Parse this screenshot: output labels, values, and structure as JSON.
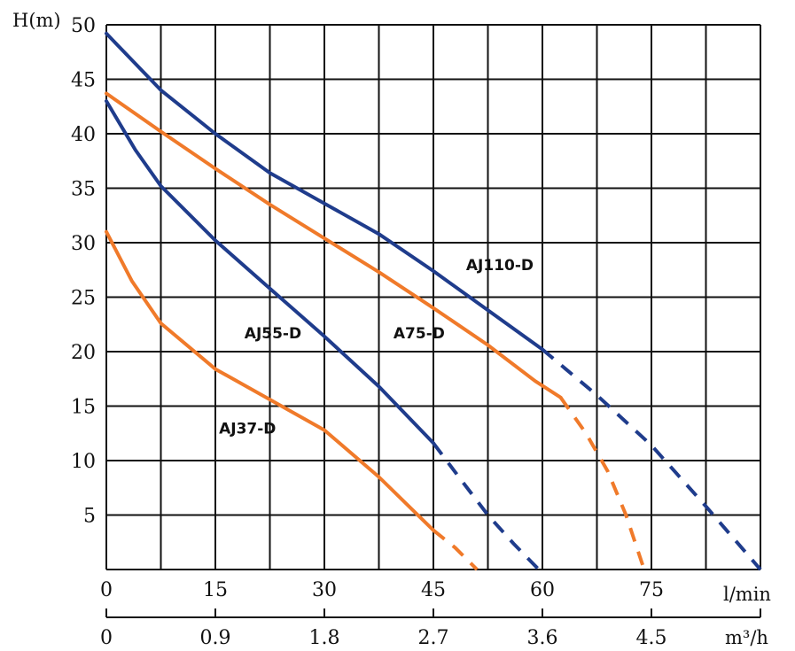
{
  "chart_data": {
    "type": "line",
    "title": "",
    "ylabel": "H(m)",
    "xlabel": "l/min",
    "xlabel2": "m³/h",
    "xlim": [
      0,
      90
    ],
    "ylim": [
      0,
      50
    ],
    "x_ticks": [
      "0",
      "15",
      "30",
      "45",
      "60",
      "75"
    ],
    "x_ticks_values": [
      0,
      15,
      30,
      45,
      60,
      75
    ],
    "x2_ticks": [
      "0",
      "0.9",
      "1.8",
      "2.7",
      "3.6",
      "4.5"
    ],
    "y_ticks": [
      "50",
      "45",
      "40",
      "35",
      "30",
      "25",
      "20",
      "15",
      "10",
      "5"
    ],
    "y_ticks_values": [
      50,
      45,
      40,
      35,
      30,
      25,
      20,
      15,
      10,
      5
    ],
    "grid": true,
    "colors": {
      "blue": "#1f3c8c",
      "orange": "#f07a2a",
      "grid": "#111111"
    },
    "series": [
      {
        "name": "AJ110-D",
        "color": "#1f3c8c",
        "solid": [
          [
            0,
            49.2
          ],
          [
            7.5,
            44
          ],
          [
            15,
            40
          ],
          [
            22.5,
            36.4
          ],
          [
            30,
            33.6
          ],
          [
            37.5,
            30.8
          ],
          [
            45,
            27.4
          ],
          [
            52.5,
            23.8
          ],
          [
            60,
            20.2
          ]
        ],
        "dashed": [
          [
            60,
            20.2
          ],
          [
            67.5,
            16
          ],
          [
            75,
            11.4
          ],
          [
            82.5,
            5.8
          ],
          [
            90,
            0
          ]
        ],
        "label_at": [
          49.5,
          27.5
        ]
      },
      {
        "name": "A75-D",
        "color": "#f07a2a",
        "solid": [
          [
            0,
            43.7
          ],
          [
            7.5,
            40.2
          ],
          [
            15,
            36.8
          ],
          [
            22.5,
            33.5
          ],
          [
            30,
            30.4
          ],
          [
            37.5,
            27.3
          ],
          [
            45,
            24
          ],
          [
            52.5,
            20.6
          ],
          [
            59,
            17.3
          ],
          [
            62.5,
            15.8
          ]
        ],
        "dashed": [
          [
            62.5,
            15.8
          ],
          [
            66,
            12.5
          ],
          [
            69,
            9
          ],
          [
            71.5,
            5
          ],
          [
            74,
            0
          ]
        ],
        "label_at": [
          39.5,
          21.2
        ]
      },
      {
        "name": "AJ55-D",
        "color": "#1f3c8c",
        "solid": [
          [
            0,
            43
          ],
          [
            4,
            38.5
          ],
          [
            7.5,
            35.2
          ],
          [
            15,
            30.2
          ],
          [
            22.5,
            25.8
          ],
          [
            30,
            21.4
          ],
          [
            37.5,
            16.8
          ],
          [
            45,
            11.6
          ]
        ],
        "dashed": [
          [
            45,
            11.6
          ],
          [
            48.5,
            8.5
          ],
          [
            52.5,
            5
          ],
          [
            56,
            2.4
          ],
          [
            59.5,
            0
          ]
        ],
        "label_at": [
          19,
          21.2
        ]
      },
      {
        "name": "AJ37-D",
        "color": "#f07a2a",
        "solid": [
          [
            0,
            31
          ],
          [
            3.5,
            26.5
          ],
          [
            7.5,
            22.6
          ],
          [
            15,
            18.4
          ],
          [
            22.5,
            15.6
          ],
          [
            30,
            12.8
          ],
          [
            37.5,
            8.5
          ],
          [
            45,
            3.6
          ]
        ],
        "dashed": [
          [
            45,
            3.6
          ],
          [
            48,
            2
          ],
          [
            51,
            0
          ]
        ],
        "label_at": [
          15.5,
          12.5
        ]
      }
    ]
  }
}
